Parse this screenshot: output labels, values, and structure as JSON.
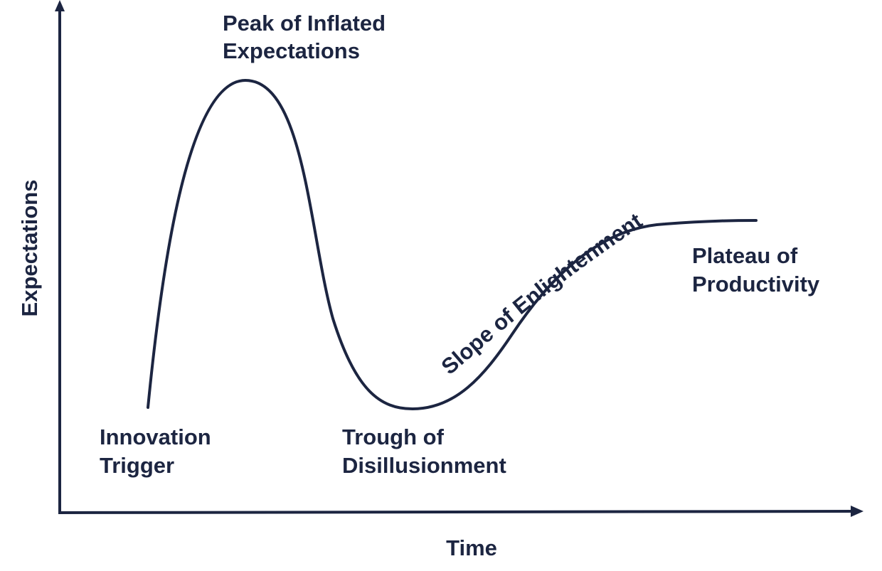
{
  "axes": {
    "y_label": "Expectations",
    "x_label": "Time"
  },
  "phases": {
    "innovation_trigger": [
      "Innovation",
      "Trigger"
    ],
    "peak": [
      "Peak of Inflated",
      "Expectations"
    ],
    "trough": [
      "Trough of",
      "Disillusionment"
    ],
    "slope": "Slope of Enlightenment",
    "plateau": [
      "Plateau of",
      "Productivity"
    ]
  },
  "colors": {
    "ink": "#1c2541",
    "background": "#ffffff"
  }
}
